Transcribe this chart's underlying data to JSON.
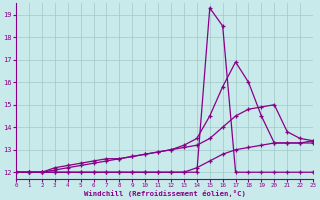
{
  "xlabel": "Windchill (Refroidissement éolien,°C)",
  "xlim": [
    0,
    23
  ],
  "ylim": [
    11.7,
    19.5
  ],
  "xticks": [
    0,
    1,
    2,
    3,
    4,
    5,
    6,
    7,
    8,
    9,
    10,
    11,
    12,
    13,
    14,
    15,
    16,
    17,
    18,
    19,
    20,
    21,
    22,
    23
  ],
  "yticks": [
    12,
    13,
    14,
    15,
    16,
    17,
    18,
    19
  ],
  "bg_color": "#c8eaea",
  "grid_color": "#a0c8c8",
  "line_color": "#880088",
  "lines": [
    {
      "x": [
        0,
        1,
        2,
        3,
        4,
        5,
        6,
        7,
        8,
        9,
        10,
        11,
        12,
        13,
        14,
        15,
        16,
        17,
        18,
        19,
        20,
        21,
        22,
        23
      ],
      "y": [
        12.0,
        12.0,
        12.0,
        12.0,
        12.0,
        12.0,
        12.0,
        12.0,
        12.0,
        12.0,
        12.0,
        12.0,
        12.0,
        12.0,
        12.0,
        19.3,
        18.5,
        12.0,
        12.0,
        12.0,
        12.0,
        12.0,
        12.0,
        12.0
      ]
    },
    {
      "x": [
        0,
        1,
        2,
        3,
        4,
        5,
        6,
        7,
        8,
        9,
        10,
        11,
        12,
        13,
        14,
        15,
        16,
        17,
        18,
        19,
        20,
        21,
        22,
        23
      ],
      "y": [
        12.0,
        12.0,
        12.0,
        12.1,
        12.2,
        12.3,
        12.4,
        12.5,
        12.6,
        12.7,
        12.8,
        12.9,
        13.0,
        13.2,
        13.5,
        14.5,
        15.8,
        16.9,
        16.0,
        14.5,
        13.3,
        13.3,
        13.3,
        13.3
      ]
    },
    {
      "x": [
        0,
        1,
        2,
        3,
        4,
        5,
        6,
        7,
        8,
        9,
        10,
        11,
        12,
        13,
        14,
        15,
        16,
        17,
        18,
        19,
        20,
        21,
        22,
        23
      ],
      "y": [
        12.0,
        12.0,
        12.0,
        12.2,
        12.3,
        12.4,
        12.5,
        12.6,
        12.6,
        12.7,
        12.8,
        12.9,
        13.0,
        13.1,
        13.2,
        13.5,
        14.0,
        14.5,
        14.8,
        14.9,
        15.0,
        13.8,
        13.5,
        13.4
      ]
    },
    {
      "x": [
        0,
        1,
        2,
        3,
        4,
        5,
        6,
        7,
        8,
        9,
        10,
        11,
        12,
        13,
        14,
        15,
        16,
        17,
        18,
        19,
        20,
        21,
        22,
        23
      ],
      "y": [
        12.0,
        12.0,
        12.0,
        12.0,
        12.0,
        12.0,
        12.0,
        12.0,
        12.0,
        12.0,
        12.0,
        12.0,
        12.0,
        12.0,
        12.2,
        12.5,
        12.8,
        13.0,
        13.1,
        13.2,
        13.3,
        13.3,
        13.3,
        13.4
      ]
    }
  ]
}
